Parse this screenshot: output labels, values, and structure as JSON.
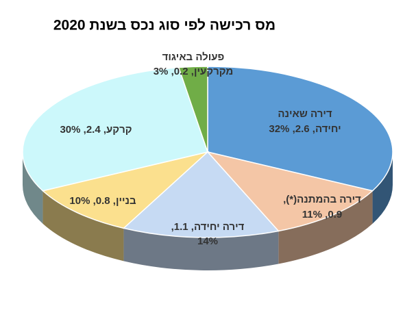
{
  "chart_data": {
    "type": "pie",
    "title": "מס רכישה לפי סוג נכס בשנת 2020",
    "values": [
      2.6,
      0.9,
      1.1,
      0.8,
      2.4,
      0.2
    ],
    "value_labels": [
      [
        "דירה שאינה",
        "יחידה, 2.6, 32%"
      ],
      [
        "דירה בהמתנה(*),",
        "0.9, 11%"
      ],
      [
        "דירה יחידה, 1.1,",
        "14%"
      ],
      [
        "בניין, 0.8, 10%"
      ],
      [
        "קרקע, 2.4, 30%"
      ],
      [
        "פעולה באיגוד",
        "מקרקעין, 0.2, 3%"
      ]
    ],
    "colors": [
      "#5b9bd5",
      "#f4c6a6",
      "#c6daf3",
      "#fbe08e",
      "#ccf8fb",
      "#70ad47"
    ]
  }
}
